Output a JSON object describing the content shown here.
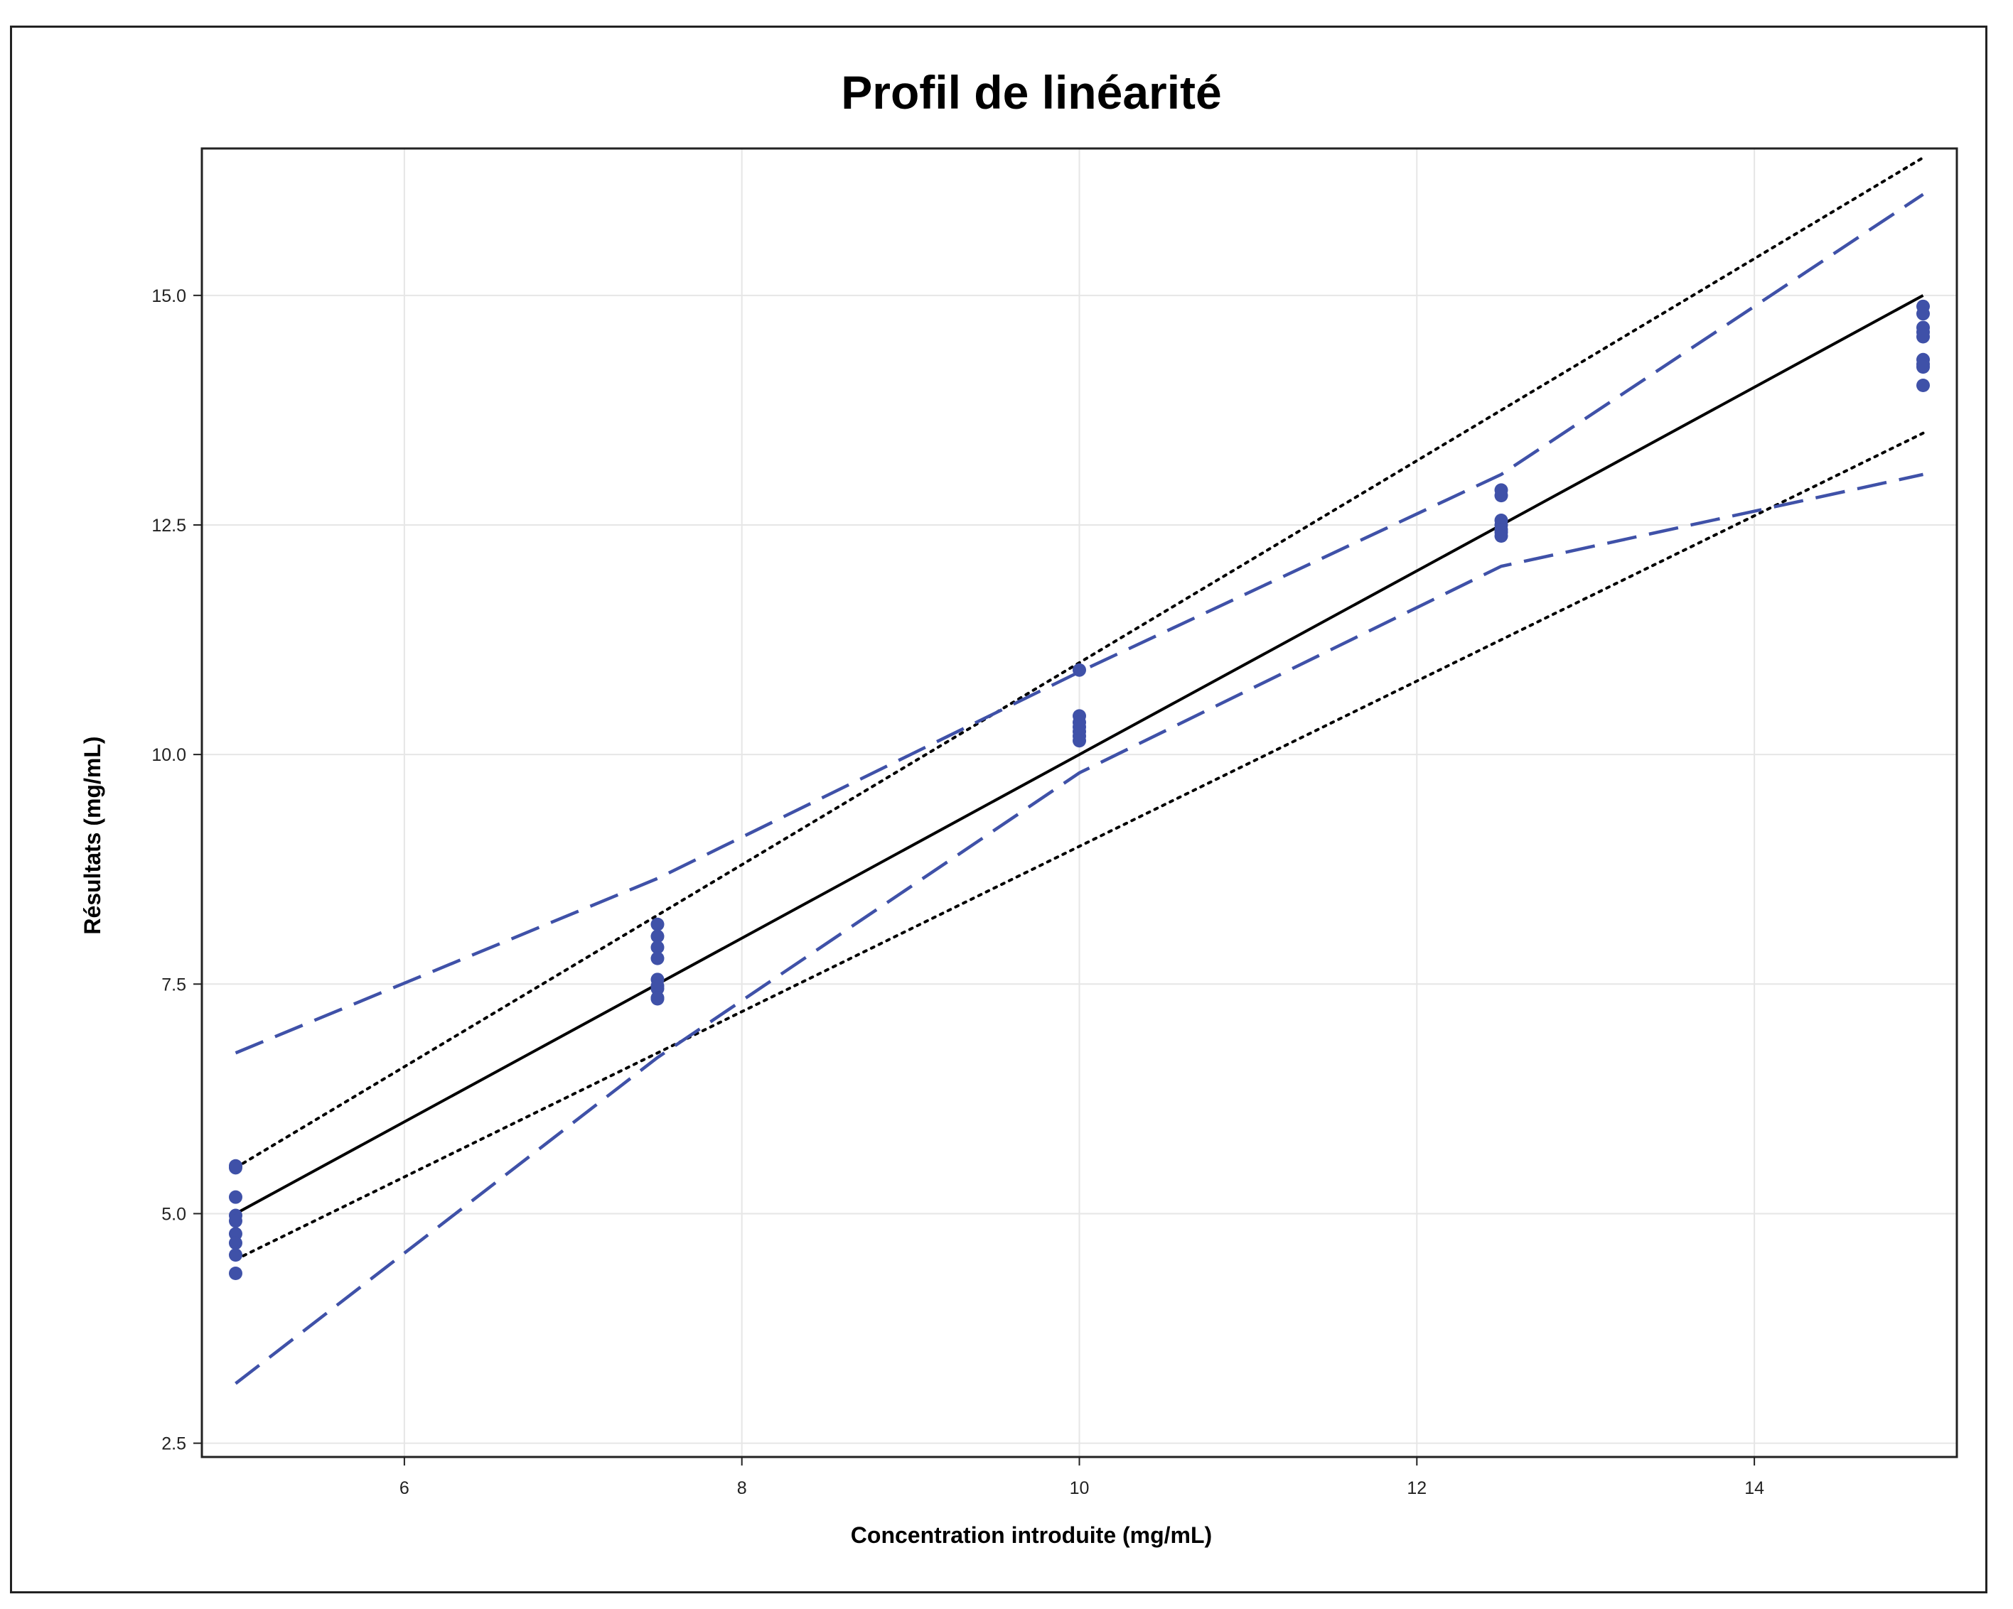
{
  "chart_data": {
    "type": "scatter",
    "title": "Profil de linéarité",
    "xlabel": "Concentration introduite (mg/mL)",
    "ylabel": "Résultats (mg/mL)",
    "xlim": [
      4.8,
      15.2
    ],
    "ylim": [
      2.35,
      16.6
    ],
    "xticks": [
      6,
      8,
      10,
      12,
      14
    ],
    "xtick_labels": [
      "6",
      "8",
      "10",
      "12",
      "14"
    ],
    "yticks": [
      2.5,
      5.0,
      7.5,
      10.0,
      12.5,
      15.0
    ],
    "ytick_labels": [
      "2.5",
      "5.0",
      "7.5",
      "10.0",
      "12.5",
      "15.0"
    ],
    "grid": true,
    "points": {
      "color": "#3f51a8",
      "x": [
        5,
        5,
        5,
        5,
        5,
        5,
        5,
        5,
        5,
        7.5,
        7.5,
        7.5,
        7.5,
        7.5,
        7.5,
        7.5,
        7.5,
        7.5,
        10,
        10,
        10,
        10,
        10,
        10,
        10,
        12.5,
        12.5,
        12.5,
        12.5,
        12.5,
        12.5,
        12.5,
        15,
        15,
        15,
        15,
        15,
        15,
        15,
        15,
        15
      ],
      "y": [
        5.5,
        5.18,
        4.98,
        4.92,
        4.78,
        4.68,
        4.55,
        4.35,
        5.52,
        8.15,
        8.02,
        7.9,
        7.78,
        7.55,
        7.48,
        7.45,
        7.35,
        7.34,
        10.92,
        10.42,
        10.35,
        10.3,
        10.25,
        10.2,
        10.15,
        12.88,
        12.82,
        12.55,
        12.5,
        12.45,
        12.42,
        12.38,
        14.88,
        14.8,
        14.65,
        14.6,
        14.55,
        14.3,
        14.25,
        14.22,
        14.02
      ]
    },
    "lines": [
      {
        "style": "solid",
        "color": "#000000",
        "x": [
          5,
          15
        ],
        "y": [
          5.0,
          15.0
        ]
      },
      {
        "style": "dotted",
        "color": "#000000",
        "x": [
          5,
          15
        ],
        "y": [
          5.5,
          16.5
        ]
      },
      {
        "style": "dotted",
        "color": "#000000",
        "x": [
          5,
          15
        ],
        "y": [
          4.5,
          13.5
        ]
      },
      {
        "style": "dashed",
        "color": "#3f51a8",
        "x": [
          5,
          7.5,
          10,
          12.5,
          15
        ],
        "y": [
          6.75,
          8.65,
          10.9,
          13.05,
          16.1
        ]
      },
      {
        "style": "dashed",
        "color": "#3f51a8",
        "x": [
          5,
          7.5,
          10,
          12.5,
          15
        ],
        "y": [
          3.15,
          6.7,
          9.8,
          12.05,
          13.05
        ]
      }
    ]
  }
}
